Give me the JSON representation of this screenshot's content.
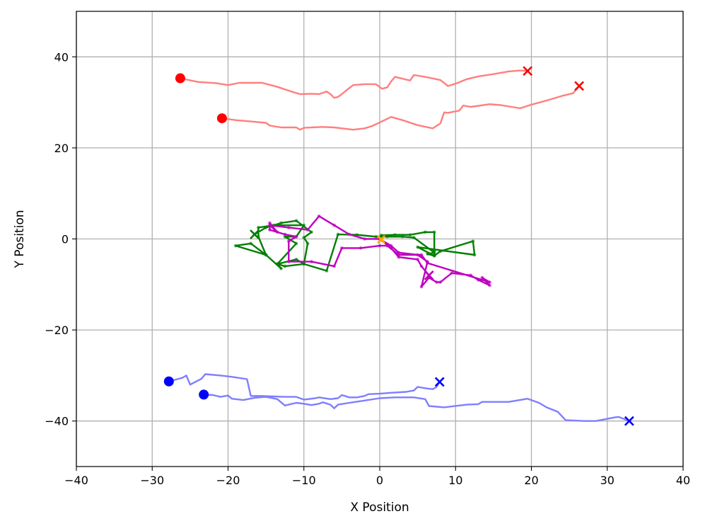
{
  "chart_data": {
    "type": "line",
    "title": "",
    "xlabel": "X Position",
    "ylabel": "Y Position",
    "xlim": [
      -40,
      40
    ],
    "ylim": [
      -50,
      50
    ],
    "xticks": [
      -40,
      -30,
      -20,
      -10,
      0,
      10,
      20,
      30,
      40
    ],
    "yticks": [
      -40,
      -20,
      0,
      20,
      40
    ],
    "grid": true,
    "legend": "none",
    "series": [
      {
        "color": "#ff7f7f",
        "start_color": "#ff0000",
        "end_color": "#ff0000",
        "points": [
          [
            -26.3,
            35.3
          ],
          [
            -24.0,
            34.5
          ],
          [
            -21.5,
            34.2
          ],
          [
            -20.0,
            33.8
          ],
          [
            -18.5,
            34.3
          ],
          [
            -17.0,
            34.3
          ],
          [
            -15.5,
            34.3
          ],
          [
            -13.5,
            33.4
          ],
          [
            -11.5,
            32.3
          ],
          [
            -10.5,
            31.8
          ],
          [
            -9.0,
            31.9
          ],
          [
            -8.0,
            31.8
          ],
          [
            -7.0,
            32.4
          ],
          [
            -6.5,
            31.8
          ],
          [
            -6.0,
            31.0
          ],
          [
            -5.5,
            31.2
          ],
          [
            -5.0,
            31.8
          ],
          [
            -4.5,
            32.5
          ],
          [
            -3.5,
            33.8
          ],
          [
            -2.0,
            34.0
          ],
          [
            -0.5,
            34.0
          ],
          [
            0.3,
            33.0
          ],
          [
            1.0,
            33.3
          ],
          [
            1.5,
            34.6
          ],
          [
            2.0,
            35.6
          ],
          [
            3.0,
            35.2
          ],
          [
            4.0,
            34.8
          ],
          [
            4.5,
            36.0
          ],
          [
            6.0,
            35.6
          ],
          [
            8.0,
            34.9
          ],
          [
            9.0,
            33.6
          ],
          [
            10.0,
            34.1
          ],
          [
            11.5,
            35.1
          ],
          [
            13.0,
            35.7
          ],
          [
            15.0,
            36.2
          ],
          [
            17.0,
            36.8
          ],
          [
            18.5,
            37.0
          ],
          [
            19.5,
            36.9
          ]
        ]
      },
      {
        "color": "#ff7f7f",
        "start_color": "#ff0000",
        "end_color": "#ff0000",
        "points": [
          [
            -20.8,
            26.5
          ],
          [
            -19.0,
            26.1
          ],
          [
            -17.0,
            25.8
          ],
          [
            -15.0,
            25.5
          ],
          [
            -14.5,
            24.9
          ],
          [
            -13.0,
            24.5
          ],
          [
            -12.0,
            24.5
          ],
          [
            -11.0,
            24.5
          ],
          [
            -10.5,
            24.0
          ],
          [
            -10.0,
            24.4
          ],
          [
            -9.0,
            24.5
          ],
          [
            -7.5,
            24.6
          ],
          [
            -6.0,
            24.5
          ],
          [
            -5.0,
            24.3
          ],
          [
            -3.5,
            24.0
          ],
          [
            -2.0,
            24.3
          ],
          [
            -1.0,
            24.8
          ],
          [
            0.0,
            25.6
          ],
          [
            1.5,
            26.8
          ],
          [
            3.0,
            26.1
          ],
          [
            5.0,
            25.0
          ],
          [
            7.0,
            24.3
          ],
          [
            8.0,
            25.4
          ],
          [
            8.5,
            27.8
          ],
          [
            9.0,
            27.7
          ],
          [
            10.5,
            28.2
          ],
          [
            11.0,
            29.3
          ],
          [
            12.0,
            29.0
          ],
          [
            14.5,
            29.6
          ],
          [
            16.0,
            29.4
          ],
          [
            18.5,
            28.7
          ],
          [
            20.0,
            29.5
          ],
          [
            22.0,
            30.4
          ],
          [
            24.0,
            31.4
          ],
          [
            25.5,
            32.0
          ],
          [
            26.3,
            33.6
          ]
        ]
      },
      {
        "color": "#007f00",
        "start_color": "#ffa500",
        "end_color": "#007f00",
        "points": [
          [
            0.2,
            0.0
          ],
          [
            0.2,
            0.8
          ],
          [
            2.0,
            0.9
          ],
          [
            4.0,
            0.9
          ],
          [
            6.0,
            1.5
          ],
          [
            7.2,
            1.5
          ],
          [
            7.2,
            -2.7
          ],
          [
            7.2,
            -3.7
          ],
          [
            8.0,
            -2.7
          ],
          [
            12.3,
            -0.5
          ],
          [
            12.5,
            -3.5
          ],
          [
            5.0,
            -1.8
          ],
          [
            7.2,
            -3.7
          ],
          [
            6.3,
            -3.3
          ],
          [
            7.2,
            -3.0
          ],
          [
            4.5,
            0.3
          ],
          [
            3.0,
            0.5
          ],
          [
            1.0,
            0.5
          ],
          [
            -0.5,
            0.5
          ],
          [
            -3.0,
            0.9
          ],
          [
            -5.5,
            1.0
          ],
          [
            -7.0,
            -7.0
          ],
          [
            -10.0,
            -5.5
          ],
          [
            -11.0,
            -4.5
          ],
          [
            -13.5,
            -5.5
          ],
          [
            -13.0,
            -6.5
          ],
          [
            -15.0,
            -3.5
          ],
          [
            -17.0,
            -1.0
          ],
          [
            -19.0,
            -1.5
          ],
          [
            -15.0,
            -3.5
          ],
          [
            -16.0,
            0.5
          ],
          [
            -16.0,
            2.5
          ],
          [
            -14.0,
            3.0
          ],
          [
            -10.0,
            3.0
          ],
          [
            -11.0,
            0.5
          ],
          [
            -12.5,
            0.5
          ],
          [
            -11.0,
            -1.0
          ],
          [
            -13.5,
            -5.5
          ],
          [
            -12.5,
            -6.0
          ],
          [
            -10.0,
            -5.5
          ],
          [
            -9.5,
            -1.0
          ],
          [
            -10.0,
            0.3
          ],
          [
            -9.0,
            1.5
          ],
          [
            -11.0,
            4.0
          ],
          [
            -13.0,
            3.5
          ],
          [
            -15.0,
            2.5
          ],
          [
            -16.5,
            1.0
          ]
        ]
      },
      {
        "color": "#bf00bf",
        "start_color": "#ffa500",
        "end_color": "#bf00bf",
        "points": [
          [
            0.2,
            -0.2
          ],
          [
            1.5,
            -1.5
          ],
          [
            2.5,
            -3.0
          ],
          [
            5.0,
            -3.5
          ],
          [
            6.3,
            -5.0
          ],
          [
            5.5,
            -10.5
          ],
          [
            6.5,
            -8.5
          ],
          [
            7.5,
            -9.5
          ],
          [
            8.0,
            -9.5
          ],
          [
            9.5,
            -7.5
          ],
          [
            12.0,
            -8.0
          ],
          [
            13.0,
            -9.0
          ],
          [
            14.5,
            -10.2
          ],
          [
            13.5,
            -8.5
          ],
          [
            14.5,
            -9.5
          ],
          [
            6.3,
            -5.3
          ],
          [
            5.5,
            -3.5
          ],
          [
            2.5,
            -3.5
          ],
          [
            1.0,
            -1.5
          ],
          [
            0.0,
            -1.5
          ],
          [
            -2.5,
            -2.0
          ],
          [
            -5.0,
            -2.0
          ],
          [
            -6.0,
            -6.0
          ],
          [
            -9.0,
            -5.0
          ],
          [
            -12.0,
            -5.0
          ],
          [
            -12.0,
            -0.5
          ],
          [
            -11.0,
            0.5
          ],
          [
            -12.5,
            1.0
          ],
          [
            -14.5,
            2.0
          ],
          [
            -14.5,
            3.5
          ],
          [
            -13.5,
            1.5
          ],
          [
            -14.5,
            3.0
          ],
          [
            -12.0,
            2.5
          ],
          [
            -9.5,
            2.0
          ],
          [
            -8.0,
            5.0
          ],
          [
            -6.0,
            3.0
          ],
          [
            -4.0,
            1.0
          ],
          [
            -2.0,
            0.0
          ],
          [
            0.0,
            0.0
          ],
          [
            1.5,
            -2.0
          ],
          [
            2.5,
            -4.0
          ],
          [
            5.0,
            -4.5
          ],
          [
            5.5,
            -6.0
          ],
          [
            6.5,
            -8.0
          ]
        ]
      },
      {
        "color": "#7f7fff",
        "start_color": "#0000ff",
        "end_color": "#0000ff",
        "points": [
          [
            -27.8,
            -31.3
          ],
          [
            -26.0,
            -30.5
          ],
          [
            -25.5,
            -30.0
          ],
          [
            -25.0,
            -32.0
          ],
          [
            -23.5,
            -30.7
          ],
          [
            -23.0,
            -29.7
          ],
          [
            -21.0,
            -30.0
          ],
          [
            -19.5,
            -30.3
          ],
          [
            -17.5,
            -30.8
          ],
          [
            -17.0,
            -34.5
          ],
          [
            -15.5,
            -34.5
          ],
          [
            -14.0,
            -34.6
          ],
          [
            -12.5,
            -34.7
          ],
          [
            -11.0,
            -34.7
          ],
          [
            -10.0,
            -35.3
          ],
          [
            -9.0,
            -35.1
          ],
          [
            -8.5,
            -35.0
          ],
          [
            -8.0,
            -34.8
          ],
          [
            -6.5,
            -35.2
          ],
          [
            -5.5,
            -35.0
          ],
          [
            -5.0,
            -34.3
          ],
          [
            -4.0,
            -34.8
          ],
          [
            -3.0,
            -34.8
          ],
          [
            -2.0,
            -34.5
          ],
          [
            -1.5,
            -34.1
          ],
          [
            0.0,
            -34.0
          ],
          [
            1.5,
            -33.8
          ],
          [
            3.5,
            -33.6
          ],
          [
            4.5,
            -33.3
          ],
          [
            5.0,
            -32.5
          ],
          [
            6.0,
            -32.8
          ],
          [
            7.0,
            -33.0
          ],
          [
            7.5,
            -32.5
          ],
          [
            7.9,
            -31.4
          ]
        ]
      },
      {
        "color": "#7f7fff",
        "start_color": "#0000ff",
        "end_color": "#0000ff",
        "points": [
          [
            -23.2,
            -34.2
          ],
          [
            -22.0,
            -34.3
          ],
          [
            -21.0,
            -34.7
          ],
          [
            -20.0,
            -34.4
          ],
          [
            -19.5,
            -35.1
          ],
          [
            -18.0,
            -35.4
          ],
          [
            -16.5,
            -34.9
          ],
          [
            -15.0,
            -34.7
          ],
          [
            -13.5,
            -35.2
          ],
          [
            -12.5,
            -36.6
          ],
          [
            -11.0,
            -36.0
          ],
          [
            -10.0,
            -36.2
          ],
          [
            -9.0,
            -36.5
          ],
          [
            -8.0,
            -36.2
          ],
          [
            -7.5,
            -35.9
          ],
          [
            -6.5,
            -36.4
          ],
          [
            -6.0,
            -37.2
          ],
          [
            -5.5,
            -36.4
          ],
          [
            -4.0,
            -36.0
          ],
          [
            -2.0,
            -35.5
          ],
          [
            0.0,
            -35.0
          ],
          [
            2.0,
            -34.8
          ],
          [
            4.5,
            -34.8
          ],
          [
            6.0,
            -35.2
          ],
          [
            6.5,
            -36.7
          ],
          [
            8.5,
            -37.0
          ],
          [
            11.5,
            -36.4
          ],
          [
            13.0,
            -36.3
          ],
          [
            13.5,
            -35.8
          ],
          [
            17.0,
            -35.8
          ],
          [
            19.5,
            -35.1
          ],
          [
            21.0,
            -36.0
          ],
          [
            22.0,
            -37.0
          ],
          [
            23.5,
            -38.0
          ],
          [
            24.5,
            -39.8
          ],
          [
            27.0,
            -40.0
          ],
          [
            28.5,
            -40.0
          ],
          [
            31.0,
            -39.2
          ],
          [
            31.5,
            -39.1
          ],
          [
            32.9,
            -40.0
          ]
        ]
      }
    ]
  }
}
